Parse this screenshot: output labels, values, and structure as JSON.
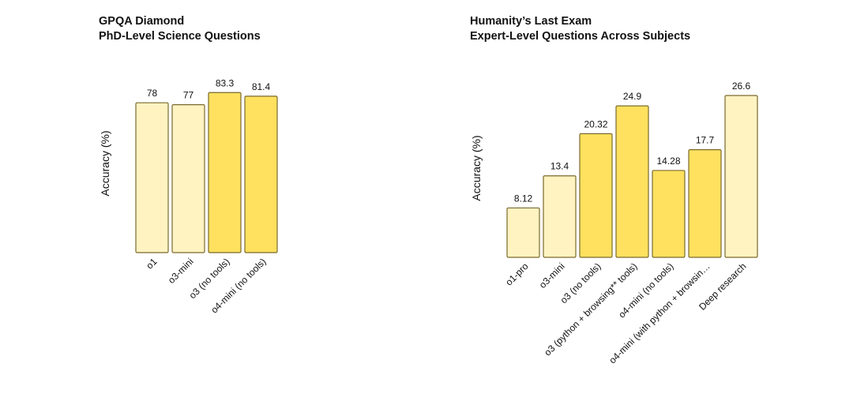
{
  "chart_data": [
    {
      "type": "bar",
      "title": "GPQA Diamond",
      "subtitle": "PhD-Level Science Questions",
      "xlabel": "",
      "ylabel": "Accuracy (%)",
      "categories": [
        "o1",
        "o3-mini",
        "o3 (no tools)",
        "o4-mini (no tools)"
      ],
      "values": [
        78,
        77,
        83.3,
        81.4
      ],
      "value_labels": [
        "78",
        "77",
        "83.3",
        "81.4"
      ],
      "highlight": [
        false,
        false,
        true,
        true
      ]
    },
    {
      "type": "bar",
      "title": "Humanity’s Last Exam",
      "subtitle": "Expert-Level Questions Across Subjects",
      "xlabel": "",
      "ylabel": "Accuracy (%)",
      "categories": [
        "o1-pro",
        "o3-mini",
        "o3 (no tools)",
        "o3 (python + browsing** tools)",
        "o4-mini (no tools)",
        "o4-mini (with python + browsin…",
        "Deep research"
      ],
      "values": [
        8.12,
        13.4,
        20.32,
        24.9,
        14.28,
        17.7,
        26.6
      ],
      "value_labels": [
        "8.12",
        "13.4",
        "20.32",
        "24.9",
        "14.28",
        "17.7",
        "26.6"
      ],
      "highlight": [
        false,
        false,
        true,
        true,
        true,
        true,
        false
      ]
    }
  ],
  "colors": {
    "light_bar": "#FFF3C2",
    "highlight_bar": "#FFE15F",
    "bar_outline": "#7A6A2C"
  }
}
